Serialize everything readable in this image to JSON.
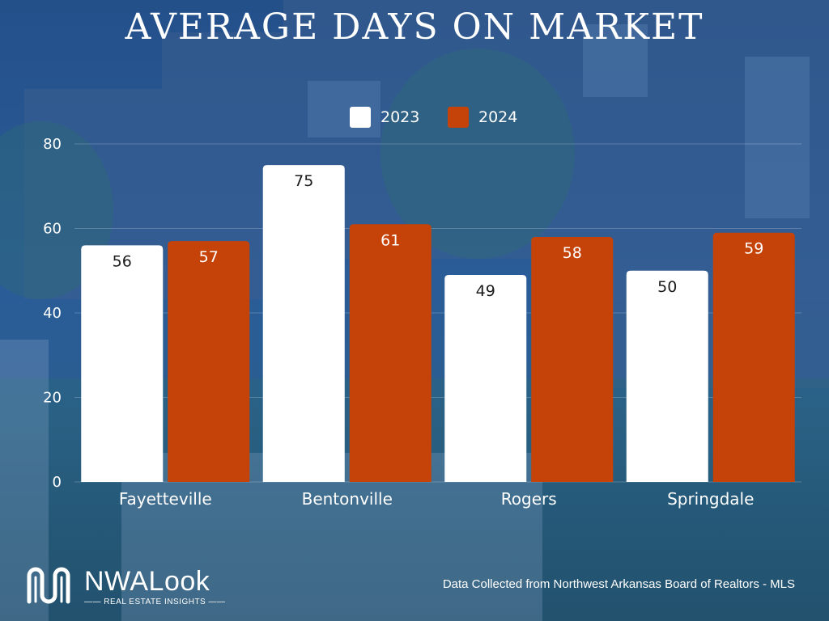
{
  "page": {
    "title": "AVERAGE DAYS ON MARKET",
    "source_note": "Data Collected from Northwest Arkansas Board of Realtors - MLS",
    "logo": {
      "name": "NWALook",
      "tagline": "REAL ESTATE INSIGHTS"
    }
  },
  "colors": {
    "series_2023": "#ffffff",
    "series_2024": "#c54308",
    "background": "#2a5c98"
  },
  "chart_data": {
    "type": "bar",
    "title": "AVERAGE DAYS ON MARKET",
    "xlabel": "",
    "ylabel": "",
    "categories": [
      "Fayetteville",
      "Bentonville",
      "Rogers",
      "Springdale"
    ],
    "series": [
      {
        "name": "2023",
        "values": [
          56,
          75,
          49,
          50
        ]
      },
      {
        "name": "2024",
        "values": [
          57,
          61,
          58,
          59
        ]
      }
    ],
    "ylim": [
      0,
      80
    ],
    "yticks": [
      0,
      20,
      40,
      60,
      80
    ],
    "grid": true,
    "legend": "top-center"
  }
}
